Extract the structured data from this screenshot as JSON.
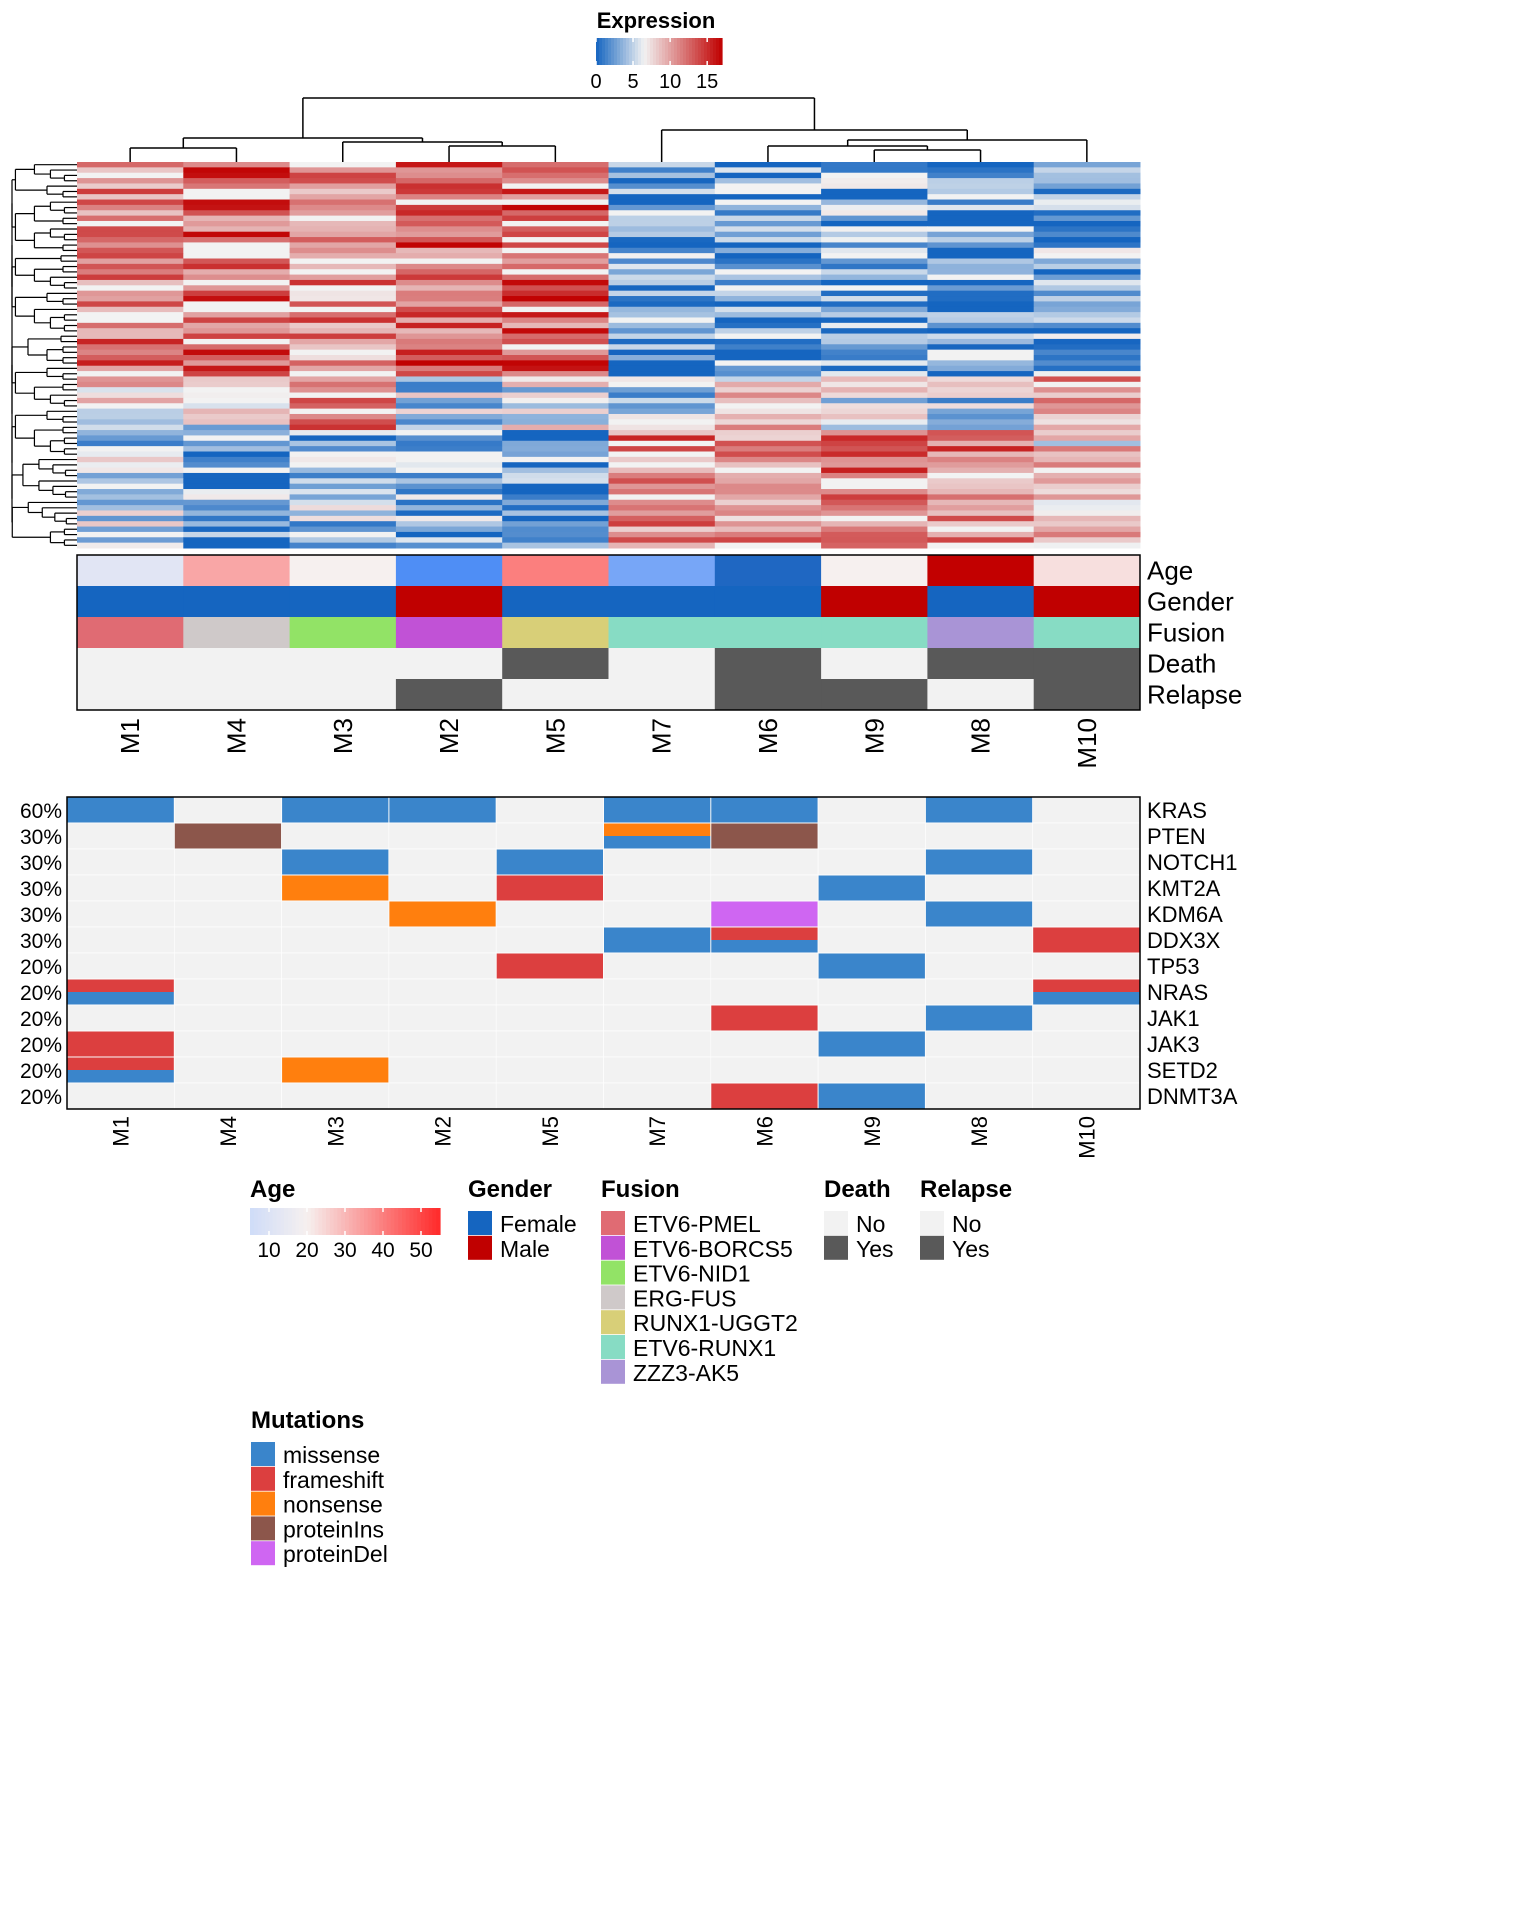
{
  "chart_data": [
    {
      "type": "heatmap",
      "title": "",
      "columns": [
        "M1",
        "M4",
        "M3",
        "M2",
        "M5",
        "M7",
        "M6",
        "M9",
        "M8",
        "M10"
      ],
      "expression_legend": {
        "title": "Expression",
        "ticks": [
          "0",
          "5",
          "10",
          "15"
        ],
        "range": [
          0,
          17
        ],
        "colors": [
          "#1565c0",
          "#f2f2f2",
          "#c00000"
        ]
      },
      "expression_row_count": 72,
      "expression_seed": 7,
      "annotations": {
        "labels": [
          "Age",
          "Gender",
          "Fusion",
          "Death",
          "Relapse"
        ],
        "age": [
          12,
          33,
          20,
          4,
          40,
          8,
          1,
          20,
          55,
          23
        ],
        "gender": [
          "Female",
          "Female",
          "Female",
          "Male",
          "Female",
          "Female",
          "Female",
          "Male",
          "Female",
          "Male"
        ],
        "fusion": [
          "ETV6-PMEL",
          "ERG-FUS",
          "ETV6-NID1",
          "ETV6-BORCS5",
          "RUNX1-UGGT2",
          "ETV6-RUNX1",
          "ETV6-RUNX1",
          "ETV6-RUNX1",
          "ZZZ3-AK5",
          "ETV6-RUNX1"
        ],
        "death": [
          "No",
          "No",
          "No",
          "No",
          "Yes",
          "No",
          "Yes",
          "No",
          "Yes",
          "Yes"
        ],
        "relapse": [
          "No",
          "No",
          "No",
          "Yes",
          "No",
          "No",
          "Yes",
          "Yes",
          "No",
          "Yes"
        ]
      }
    },
    {
      "type": "heatmap",
      "title": "",
      "columns": [
        "M1",
        "M4",
        "M3",
        "M2",
        "M5",
        "M7",
        "M6",
        "M9",
        "M8",
        "M10"
      ],
      "genes": [
        {
          "gene": "KRAS",
          "pct": "60%",
          "cells": [
            [
              "missense"
            ],
            [],
            [
              "missense"
            ],
            [
              "missense"
            ],
            [],
            [
              "missense"
            ],
            [
              "missense"
            ],
            [],
            [
              "missense"
            ],
            []
          ]
        },
        {
          "gene": "PTEN",
          "pct": "30%",
          "cells": [
            [],
            [
              "proteinIns"
            ],
            [],
            [],
            [],
            [
              "nonsense",
              "missense"
            ],
            [
              "proteinIns"
            ],
            [],
            [],
            []
          ]
        },
        {
          "gene": "NOTCH1",
          "pct": "30%",
          "cells": [
            [],
            [],
            [
              "missense"
            ],
            [],
            [
              "missense"
            ],
            [],
            [],
            [],
            [
              "missense"
            ],
            []
          ]
        },
        {
          "gene": "KMT2A",
          "pct": "30%",
          "cells": [
            [],
            [],
            [
              "nonsense"
            ],
            [],
            [
              "frameshift"
            ],
            [],
            [],
            [
              "missense"
            ],
            [],
            []
          ]
        },
        {
          "gene": "KDM6A",
          "pct": "30%",
          "cells": [
            [],
            [],
            [],
            [
              "nonsense"
            ],
            [],
            [],
            [
              "proteinDel"
            ],
            [],
            [
              "missense"
            ],
            []
          ]
        },
        {
          "gene": "DDX3X",
          "pct": "30%",
          "cells": [
            [],
            [],
            [],
            [],
            [],
            [
              "missense"
            ],
            [
              "frameshift",
              "missense"
            ],
            [],
            [],
            [
              "frameshift"
            ]
          ]
        },
        {
          "gene": "TP53",
          "pct": "20%",
          "cells": [
            [],
            [],
            [],
            [],
            [
              "frameshift"
            ],
            [],
            [],
            [
              "missense"
            ],
            [],
            []
          ]
        },
        {
          "gene": "NRAS",
          "pct": "20%",
          "cells": [
            [
              "frameshift",
              "missense"
            ],
            [],
            [],
            [],
            [],
            [],
            [],
            [],
            [],
            [
              "frameshift",
              "missense"
            ]
          ]
        },
        {
          "gene": "JAK1",
          "pct": "20%",
          "cells": [
            [],
            [],
            [],
            [],
            [],
            [],
            [
              "frameshift"
            ],
            [],
            [
              "missense"
            ],
            []
          ]
        },
        {
          "gene": "JAK3",
          "pct": "20%",
          "cells": [
            [
              "frameshift"
            ],
            [],
            [],
            [],
            [],
            [],
            [],
            [
              "missense"
            ],
            [],
            []
          ]
        },
        {
          "gene": "SETD2",
          "pct": "20%",
          "cells": [
            [
              "frameshift",
              "missense"
            ],
            [],
            [
              "nonsense"
            ],
            [],
            [],
            [],
            [],
            [],
            [],
            []
          ]
        },
        {
          "gene": "DNMT3A",
          "pct": "20%",
          "cells": [
            [],
            [],
            [],
            [],
            [],
            [],
            [
              "frameshift"
            ],
            [
              "missense"
            ],
            [],
            []
          ]
        }
      ]
    }
  ],
  "legends": {
    "age": {
      "title": "Age",
      "ticks": [
        "10",
        "20",
        "30",
        "40",
        "50"
      ],
      "range": [
        5,
        55
      ]
    },
    "gender": {
      "title": "Gender",
      "items": [
        {
          "label": "Female",
          "color": "#1565c0"
        },
        {
          "label": "Male",
          "color": "#c00000"
        }
      ]
    },
    "fusion": {
      "title": "Fusion",
      "items": [
        {
          "label": "ETV6-PMEL",
          "color": "#e06b73"
        },
        {
          "label": "ETV6-BORCS5",
          "color": "#c152d6"
        },
        {
          "label": "ETV6-NID1",
          "color": "#92e366"
        },
        {
          "label": "ERG-FUS",
          "color": "#cfc9c9"
        },
        {
          "label": "RUNX1-UGGT2",
          "color": "#d8cf78"
        },
        {
          "label": "ETV6-RUNX1",
          "color": "#87dcc4"
        },
        {
          "label": "ZZZ3-AK5",
          "color": "#a994d6"
        }
      ]
    },
    "death": {
      "title": "Death",
      "items": [
        {
          "label": "No",
          "color": "#f2f2f2"
        },
        {
          "label": "Yes",
          "color": "#595959"
        }
      ]
    },
    "relapse": {
      "title": "Relapse",
      "items": [
        {
          "label": "No",
          "color": "#f2f2f2"
        },
        {
          "label": "Yes",
          "color": "#595959"
        }
      ]
    },
    "mutations": {
      "title": "Mutations",
      "items": [
        {
          "label": "missense",
          "color": "#3a85cb"
        },
        {
          "label": "frameshift",
          "color": "#dc3f3f"
        },
        {
          "label": "nonsense",
          "color": "#ff7f0e"
        },
        {
          "label": "proteinIns",
          "color": "#8c564b"
        },
        {
          "label": "proteinDel",
          "color": "#cf66f2"
        }
      ]
    }
  },
  "colors": {
    "background_cell": "#f2f2f2",
    "expression_low": "#1565c0",
    "expression_mid": "#f2f2f2",
    "expression_high": "#c00000",
    "age_low": "#cfdcf8",
    "age_mid": "#f6f0ef",
    "age_high": "#ff2a2a"
  }
}
